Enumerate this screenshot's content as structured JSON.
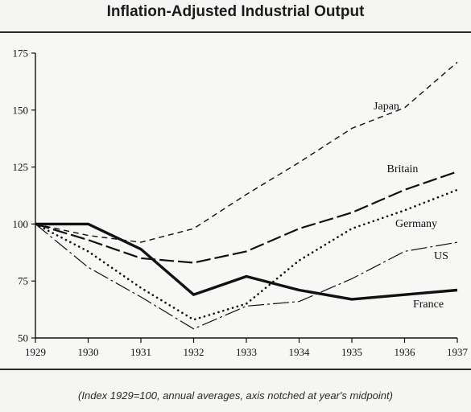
{
  "title": "Inflation-Adjusted Industrial Output",
  "caption": "(Index 1929=100, annual averages, axis notched at year's midpoint)",
  "chart_data": {
    "type": "line",
    "x": [
      1929,
      1930,
      1931,
      1932,
      1933,
      1934,
      1935,
      1936,
      1937
    ],
    "xlim": [
      1929,
      1937
    ],
    "ylim": [
      50,
      175
    ],
    "yticks": [
      50,
      75,
      100,
      125,
      150,
      175
    ],
    "grid": false,
    "legend": "inline labels at right",
    "series": [
      {
        "name": "Japan",
        "style": "dashed-short",
        "values": [
          100,
          95,
          92,
          98,
          113,
          127,
          142,
          151,
          171
        ]
      },
      {
        "name": "Britain",
        "style": "dashed-long",
        "values": [
          100,
          93,
          85,
          83,
          88,
          98,
          105,
          115,
          123
        ]
      },
      {
        "name": "Germany",
        "style": "dotted",
        "values": [
          100,
          88,
          72,
          58,
          65,
          84,
          98,
          106,
          115
        ]
      },
      {
        "name": "US",
        "style": "dash-dot-thin",
        "values": [
          100,
          81,
          68,
          54,
          64,
          66,
          76,
          88,
          92
        ]
      },
      {
        "name": "France",
        "style": "solid-thick",
        "values": [
          100,
          100,
          89,
          69,
          77,
          71,
          67,
          69,
          71
        ]
      }
    ]
  }
}
